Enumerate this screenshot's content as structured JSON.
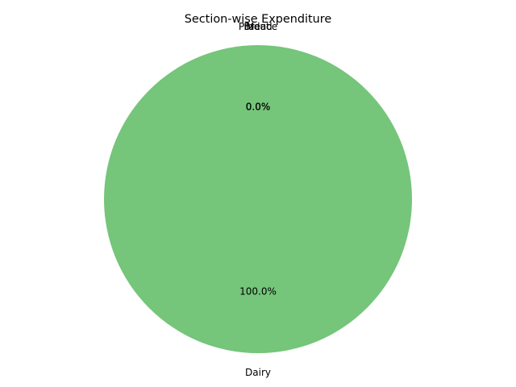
{
  "chart_data": {
    "type": "pie",
    "title": "Section-wise Expenditure",
    "start_angle_deg": 90,
    "counterclock": true,
    "slices": [
      {
        "label": "Dairy",
        "value": 100.0,
        "pct_label": "100.0%",
        "color": "#75c57a"
      },
      {
        "label": "Bread",
        "value": 0.0,
        "pct_label": "0.0%",
        "color": "#9ecae1"
      },
      {
        "label": "Meat",
        "value": 0.0,
        "pct_label": "0.0%",
        "color": "#fdae6b"
      },
      {
        "label": "Produce",
        "value": 0.0,
        "pct_label": "0.0%",
        "color": "#fc9272"
      }
    ],
    "axis_equal": true,
    "legend": "none",
    "grid": false
  }
}
